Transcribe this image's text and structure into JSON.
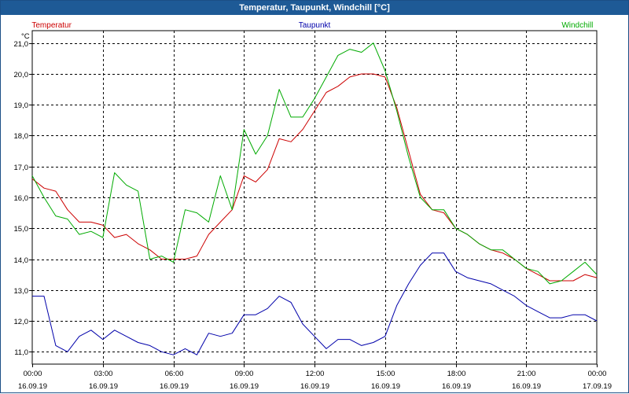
{
  "window": {
    "title": "Temperatur, Taupunkt, Windchill [°C]"
  },
  "chart_data": {
    "type": "line",
    "title": "Temperatur, Taupunkt, Windchill [°C]",
    "ylabel": "°C",
    "xlabel": "",
    "grid": true,
    "legend_placement": "top",
    "ylim": [
      10.6,
      21.4
    ],
    "xlim": [
      0,
      24
    ],
    "y_ticks": [
      11.0,
      12.0,
      13.0,
      14.0,
      15.0,
      16.0,
      17.0,
      18.0,
      19.0,
      20.0,
      21.0
    ],
    "y_tick_labels": [
      "11,0",
      "12,0",
      "13,0",
      "14,0",
      "15,0",
      "16,0",
      "17,0",
      "18,0",
      "19,0",
      "20,0",
      "21,0"
    ],
    "x_ticks": [
      {
        "x": 0,
        "time": "00:00",
        "date": "16.09.19"
      },
      {
        "x": 3,
        "time": "03:00",
        "date": "16.09.19"
      },
      {
        "x": 6,
        "time": "06:00",
        "date": "16.09.19"
      },
      {
        "x": 9,
        "time": "09:00",
        "date": "16.09.19"
      },
      {
        "x": 12,
        "time": "12:00",
        "date": "16.09.19"
      },
      {
        "x": 15,
        "time": "15:00",
        "date": "16.09.19"
      },
      {
        "x": 18,
        "time": "18:00",
        "date": "16.09.19"
      },
      {
        "x": 21,
        "time": "21:00",
        "date": "16.09.19"
      },
      {
        "x": 24,
        "time": "00:00",
        "date": "17.09.19"
      }
    ],
    "series": [
      {
        "name": "Temperatur",
        "color": "#cc0000",
        "points": [
          [
            0.0,
            16.6
          ],
          [
            0.5,
            16.3
          ],
          [
            1.0,
            16.2
          ],
          [
            1.5,
            15.6
          ],
          [
            2.0,
            15.2
          ],
          [
            2.5,
            15.2
          ],
          [
            3.0,
            15.1
          ],
          [
            3.5,
            14.7
          ],
          [
            4.0,
            14.8
          ],
          [
            4.5,
            14.5
          ],
          [
            5.0,
            14.3
          ],
          [
            5.5,
            14.0
          ],
          [
            6.0,
            14.0
          ],
          [
            6.5,
            14.0
          ],
          [
            7.0,
            14.1
          ],
          [
            7.5,
            14.8
          ],
          [
            8.0,
            15.2
          ],
          [
            8.5,
            15.6
          ],
          [
            9.0,
            16.7
          ],
          [
            9.5,
            16.5
          ],
          [
            10.0,
            16.9
          ],
          [
            10.5,
            17.9
          ],
          [
            11.0,
            17.8
          ],
          [
            11.5,
            18.2
          ],
          [
            12.0,
            18.8
          ],
          [
            12.5,
            19.4
          ],
          [
            13.0,
            19.6
          ],
          [
            13.5,
            19.9
          ],
          [
            14.0,
            20.0
          ],
          [
            14.5,
            20.0
          ],
          [
            15.0,
            19.9
          ],
          [
            15.5,
            18.9
          ],
          [
            16.0,
            17.5
          ],
          [
            16.5,
            16.1
          ],
          [
            17.0,
            15.6
          ],
          [
            17.5,
            15.5
          ],
          [
            18.0,
            15.0
          ],
          [
            18.5,
            14.8
          ],
          [
            19.0,
            14.5
          ],
          [
            19.5,
            14.3
          ],
          [
            20.0,
            14.2
          ],
          [
            20.5,
            14.0
          ],
          [
            21.0,
            13.7
          ],
          [
            21.5,
            13.5
          ],
          [
            22.0,
            13.3
          ],
          [
            22.5,
            13.3
          ],
          [
            23.0,
            13.3
          ],
          [
            23.5,
            13.5
          ],
          [
            24.0,
            13.4
          ]
        ]
      },
      {
        "name": "Taupunkt",
        "color": "#0000aa",
        "points": [
          [
            0.0,
            12.8
          ],
          [
            0.5,
            12.8
          ],
          [
            1.0,
            11.2
          ],
          [
            1.5,
            11.0
          ],
          [
            2.0,
            11.5
          ],
          [
            2.5,
            11.7
          ],
          [
            3.0,
            11.4
          ],
          [
            3.5,
            11.7
          ],
          [
            4.0,
            11.5
          ],
          [
            4.5,
            11.3
          ],
          [
            5.0,
            11.2
          ],
          [
            5.5,
            11.0
          ],
          [
            6.0,
            10.9
          ],
          [
            6.5,
            11.1
          ],
          [
            7.0,
            10.9
          ],
          [
            7.5,
            11.6
          ],
          [
            8.0,
            11.5
          ],
          [
            8.5,
            11.6
          ],
          [
            9.0,
            12.2
          ],
          [
            9.5,
            12.2
          ],
          [
            10.0,
            12.4
          ],
          [
            10.5,
            12.8
          ],
          [
            11.0,
            12.6
          ],
          [
            11.5,
            11.9
          ],
          [
            12.0,
            11.5
          ],
          [
            12.5,
            11.1
          ],
          [
            13.0,
            11.4
          ],
          [
            13.5,
            11.4
          ],
          [
            14.0,
            11.2
          ],
          [
            14.5,
            11.3
          ],
          [
            15.0,
            11.5
          ],
          [
            15.5,
            12.5
          ],
          [
            16.0,
            13.2
          ],
          [
            16.5,
            13.8
          ],
          [
            17.0,
            14.2
          ],
          [
            17.5,
            14.2
          ],
          [
            18.0,
            13.6
          ],
          [
            18.5,
            13.4
          ],
          [
            19.0,
            13.3
          ],
          [
            19.5,
            13.2
          ],
          [
            20.0,
            13.0
          ],
          [
            20.5,
            12.8
          ],
          [
            21.0,
            12.5
          ],
          [
            21.5,
            12.3
          ],
          [
            22.0,
            12.1
          ],
          [
            22.5,
            12.1
          ],
          [
            23.0,
            12.2
          ],
          [
            23.5,
            12.2
          ],
          [
            24.0,
            12.0
          ]
        ]
      },
      {
        "name": "Windchill",
        "color": "#00aa00",
        "points": [
          [
            0.0,
            16.7
          ],
          [
            0.5,
            16.0
          ],
          [
            1.0,
            15.4
          ],
          [
            1.5,
            15.3
          ],
          [
            2.0,
            14.8
          ],
          [
            2.5,
            14.9
          ],
          [
            3.0,
            14.7
          ],
          [
            3.5,
            16.8
          ],
          [
            4.0,
            16.4
          ],
          [
            4.5,
            16.2
          ],
          [
            5.0,
            14.0
          ],
          [
            5.5,
            14.1
          ],
          [
            6.0,
            13.9
          ],
          [
            6.5,
            15.6
          ],
          [
            7.0,
            15.5
          ],
          [
            7.5,
            15.2
          ],
          [
            8.0,
            16.7
          ],
          [
            8.5,
            15.6
          ],
          [
            9.0,
            18.2
          ],
          [
            9.5,
            17.4
          ],
          [
            10.0,
            18.0
          ],
          [
            10.5,
            19.5
          ],
          [
            11.0,
            18.6
          ],
          [
            11.5,
            18.6
          ],
          [
            12.0,
            19.2
          ],
          [
            12.5,
            19.9
          ],
          [
            13.0,
            20.6
          ],
          [
            13.5,
            20.8
          ],
          [
            14.0,
            20.7
          ],
          [
            14.5,
            21.0
          ],
          [
            15.0,
            20.1
          ],
          [
            15.5,
            18.8
          ],
          [
            16.0,
            17.3
          ],
          [
            16.5,
            16.0
          ],
          [
            17.0,
            15.6
          ],
          [
            17.5,
            15.6
          ],
          [
            18.0,
            15.0
          ],
          [
            18.5,
            14.8
          ],
          [
            19.0,
            14.5
          ],
          [
            19.5,
            14.3
          ],
          [
            20.0,
            14.3
          ],
          [
            20.5,
            14.0
          ],
          [
            21.0,
            13.7
          ],
          [
            21.5,
            13.6
          ],
          [
            22.0,
            13.2
          ],
          [
            22.5,
            13.3
          ],
          [
            23.0,
            13.6
          ],
          [
            23.5,
            13.9
          ],
          [
            24.0,
            13.5
          ]
        ]
      }
    ]
  }
}
